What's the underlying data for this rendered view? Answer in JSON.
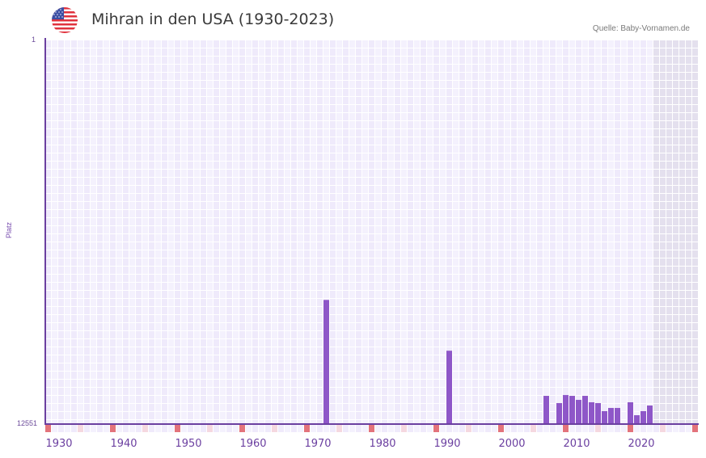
{
  "header": {
    "title": "Mihran in den USA (1930-2023)",
    "source": "Quelle: Baby-Vornamen.de",
    "flag_icon": "us-flag-icon"
  },
  "colors": {
    "bar": "#8e57c8",
    "axis": "#6b3fa0",
    "grid_a": "#efeafb",
    "grid_b": "#f4f1fd",
    "future_shade": "#e4e0ee",
    "decade_marker": "#e3737b",
    "half_decade_marker": "#f5d8e0"
  },
  "chart_data": {
    "type": "bar",
    "title": "Mihran in den USA (1930-2023)",
    "xlabel": "",
    "ylabel": "Platz",
    "y_reversed": true,
    "ylim": [
      1,
      12551
    ],
    "ytick_labels": [
      "1",
      "12551"
    ],
    "xtick_labels": [
      "1930",
      "1940",
      "1950",
      "1960",
      "1970",
      "1980",
      "1990",
      "2000",
      "2010",
      "2020"
    ],
    "grid": true,
    "x": [
      1971,
      1990,
      2005,
      2007,
      2008,
      2009,
      2010,
      2011,
      2012,
      2013,
      2014,
      2015,
      2016,
      2018,
      2019,
      2020,
      2021
    ],
    "values": [
      8508,
      10173,
      11652,
      11890,
      11626,
      11652,
      11784,
      11652,
      11863,
      11890,
      12154,
      12049,
      12049,
      11863,
      12287,
      12154,
      11969
    ],
    "series": [
      {
        "name": "Platz",
        "values": [
          8508,
          10173,
          11652,
          11890,
          11626,
          11652,
          11784,
          11652,
          11863,
          11890,
          12154,
          12049,
          12049,
          11863,
          12287,
          12154,
          11969
        ]
      }
    ]
  },
  "axis": {
    "y_top": "1",
    "y_bottom": "12551",
    "y_label": "Platz",
    "x_labels": [
      "1930",
      "1940",
      "1950",
      "1960",
      "1970",
      "1980",
      "1990",
      "2000",
      "2010",
      "2020"
    ]
  }
}
